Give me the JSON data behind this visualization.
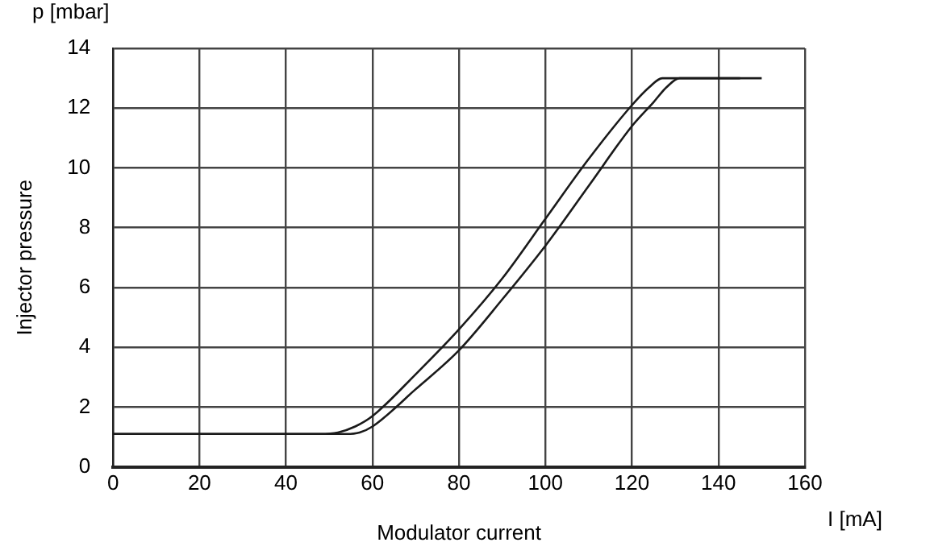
{
  "chart_data": {
    "type": "line",
    "xlabel": "Modulator current",
    "ylabel": "Injector pressure",
    "annotations": [
      "p [mbar]",
      "I [mA]"
    ],
    "xlim": [
      0,
      160
    ],
    "xticks": [
      0,
      20,
      40,
      60,
      80,
      100,
      120,
      140,
      160
    ],
    "ylim": [
      0,
      14
    ],
    "yticks": [
      0,
      2,
      4,
      6,
      8,
      10,
      12,
      14
    ],
    "grid": true,
    "legend": false,
    "marker": "none",
    "line_style": "solid",
    "series": [
      {
        "color": "#1a1a1a",
        "x": [
          0,
          40,
          48,
          52,
          56,
          60,
          70,
          80,
          90,
          100,
          110,
          120,
          124,
          127,
          130,
          150
        ],
        "values": [
          1.1,
          1.1,
          1.1,
          1.15,
          1.35,
          1.7,
          3.1,
          4.6,
          6.3,
          8.3,
          10.3,
          12.1,
          12.7,
          13,
          13,
          13
        ]
      },
      {
        "color": "#1a1a1a",
        "x": [
          0,
          50,
          54,
          57,
          60,
          70,
          80,
          90,
          100,
          110,
          120,
          125,
          128,
          131,
          145
        ],
        "values": [
          1.1,
          1.1,
          1.1,
          1.15,
          1.35,
          2.6,
          3.9,
          5.6,
          7.4,
          9.4,
          11.4,
          12.2,
          12.7,
          13,
          13
        ]
      }
    ]
  }
}
